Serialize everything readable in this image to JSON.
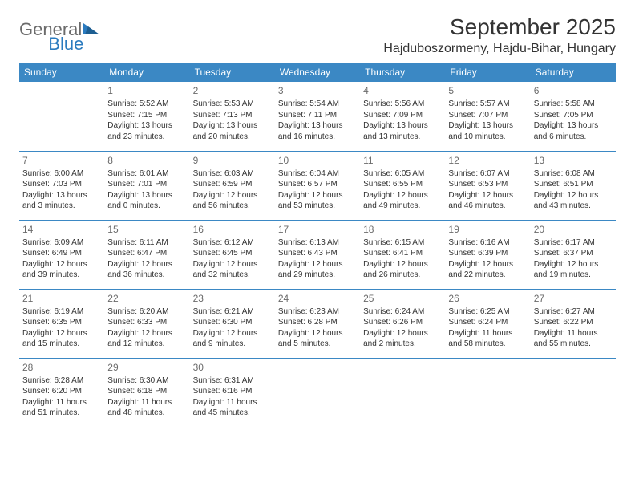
{
  "logo": {
    "word1": "General",
    "word2": "Blue"
  },
  "title": "September 2025",
  "location": "Hajduboszormeny, Hajdu-Bihar, Hungary",
  "colors": {
    "header_bg": "#3b88c4",
    "header_text": "#ffffff",
    "body_text": "#333333",
    "daynum_text": "#6b6b6b",
    "divider": "#3b88c4",
    "logo_gray": "#6b6b6b",
    "logo_blue": "#2b7bbf"
  },
  "weekdays": [
    "Sunday",
    "Monday",
    "Tuesday",
    "Wednesday",
    "Thursday",
    "Friday",
    "Saturday"
  ],
  "weeks": [
    [
      null,
      {
        "n": "1",
        "sunrise": "Sunrise: 5:52 AM",
        "sunset": "Sunset: 7:15 PM",
        "d1": "Daylight: 13 hours",
        "d2": "and 23 minutes."
      },
      {
        "n": "2",
        "sunrise": "Sunrise: 5:53 AM",
        "sunset": "Sunset: 7:13 PM",
        "d1": "Daylight: 13 hours",
        "d2": "and 20 minutes."
      },
      {
        "n": "3",
        "sunrise": "Sunrise: 5:54 AM",
        "sunset": "Sunset: 7:11 PM",
        "d1": "Daylight: 13 hours",
        "d2": "and 16 minutes."
      },
      {
        "n": "4",
        "sunrise": "Sunrise: 5:56 AM",
        "sunset": "Sunset: 7:09 PM",
        "d1": "Daylight: 13 hours",
        "d2": "and 13 minutes."
      },
      {
        "n": "5",
        "sunrise": "Sunrise: 5:57 AM",
        "sunset": "Sunset: 7:07 PM",
        "d1": "Daylight: 13 hours",
        "d2": "and 10 minutes."
      },
      {
        "n": "6",
        "sunrise": "Sunrise: 5:58 AM",
        "sunset": "Sunset: 7:05 PM",
        "d1": "Daylight: 13 hours",
        "d2": "and 6 minutes."
      }
    ],
    [
      {
        "n": "7",
        "sunrise": "Sunrise: 6:00 AM",
        "sunset": "Sunset: 7:03 PM",
        "d1": "Daylight: 13 hours",
        "d2": "and 3 minutes."
      },
      {
        "n": "8",
        "sunrise": "Sunrise: 6:01 AM",
        "sunset": "Sunset: 7:01 PM",
        "d1": "Daylight: 13 hours",
        "d2": "and 0 minutes."
      },
      {
        "n": "9",
        "sunrise": "Sunrise: 6:03 AM",
        "sunset": "Sunset: 6:59 PM",
        "d1": "Daylight: 12 hours",
        "d2": "and 56 minutes."
      },
      {
        "n": "10",
        "sunrise": "Sunrise: 6:04 AM",
        "sunset": "Sunset: 6:57 PM",
        "d1": "Daylight: 12 hours",
        "d2": "and 53 minutes."
      },
      {
        "n": "11",
        "sunrise": "Sunrise: 6:05 AM",
        "sunset": "Sunset: 6:55 PM",
        "d1": "Daylight: 12 hours",
        "d2": "and 49 minutes."
      },
      {
        "n": "12",
        "sunrise": "Sunrise: 6:07 AM",
        "sunset": "Sunset: 6:53 PM",
        "d1": "Daylight: 12 hours",
        "d2": "and 46 minutes."
      },
      {
        "n": "13",
        "sunrise": "Sunrise: 6:08 AM",
        "sunset": "Sunset: 6:51 PM",
        "d1": "Daylight: 12 hours",
        "d2": "and 43 minutes."
      }
    ],
    [
      {
        "n": "14",
        "sunrise": "Sunrise: 6:09 AM",
        "sunset": "Sunset: 6:49 PM",
        "d1": "Daylight: 12 hours",
        "d2": "and 39 minutes."
      },
      {
        "n": "15",
        "sunrise": "Sunrise: 6:11 AM",
        "sunset": "Sunset: 6:47 PM",
        "d1": "Daylight: 12 hours",
        "d2": "and 36 minutes."
      },
      {
        "n": "16",
        "sunrise": "Sunrise: 6:12 AM",
        "sunset": "Sunset: 6:45 PM",
        "d1": "Daylight: 12 hours",
        "d2": "and 32 minutes."
      },
      {
        "n": "17",
        "sunrise": "Sunrise: 6:13 AM",
        "sunset": "Sunset: 6:43 PM",
        "d1": "Daylight: 12 hours",
        "d2": "and 29 minutes."
      },
      {
        "n": "18",
        "sunrise": "Sunrise: 6:15 AM",
        "sunset": "Sunset: 6:41 PM",
        "d1": "Daylight: 12 hours",
        "d2": "and 26 minutes."
      },
      {
        "n": "19",
        "sunrise": "Sunrise: 6:16 AM",
        "sunset": "Sunset: 6:39 PM",
        "d1": "Daylight: 12 hours",
        "d2": "and 22 minutes."
      },
      {
        "n": "20",
        "sunrise": "Sunrise: 6:17 AM",
        "sunset": "Sunset: 6:37 PM",
        "d1": "Daylight: 12 hours",
        "d2": "and 19 minutes."
      }
    ],
    [
      {
        "n": "21",
        "sunrise": "Sunrise: 6:19 AM",
        "sunset": "Sunset: 6:35 PM",
        "d1": "Daylight: 12 hours",
        "d2": "and 15 minutes."
      },
      {
        "n": "22",
        "sunrise": "Sunrise: 6:20 AM",
        "sunset": "Sunset: 6:33 PM",
        "d1": "Daylight: 12 hours",
        "d2": "and 12 minutes."
      },
      {
        "n": "23",
        "sunrise": "Sunrise: 6:21 AM",
        "sunset": "Sunset: 6:30 PM",
        "d1": "Daylight: 12 hours",
        "d2": "and 9 minutes."
      },
      {
        "n": "24",
        "sunrise": "Sunrise: 6:23 AM",
        "sunset": "Sunset: 6:28 PM",
        "d1": "Daylight: 12 hours",
        "d2": "and 5 minutes."
      },
      {
        "n": "25",
        "sunrise": "Sunrise: 6:24 AM",
        "sunset": "Sunset: 6:26 PM",
        "d1": "Daylight: 12 hours",
        "d2": "and 2 minutes."
      },
      {
        "n": "26",
        "sunrise": "Sunrise: 6:25 AM",
        "sunset": "Sunset: 6:24 PM",
        "d1": "Daylight: 11 hours",
        "d2": "and 58 minutes."
      },
      {
        "n": "27",
        "sunrise": "Sunrise: 6:27 AM",
        "sunset": "Sunset: 6:22 PM",
        "d1": "Daylight: 11 hours",
        "d2": "and 55 minutes."
      }
    ],
    [
      {
        "n": "28",
        "sunrise": "Sunrise: 6:28 AM",
        "sunset": "Sunset: 6:20 PM",
        "d1": "Daylight: 11 hours",
        "d2": "and 51 minutes."
      },
      {
        "n": "29",
        "sunrise": "Sunrise: 6:30 AM",
        "sunset": "Sunset: 6:18 PM",
        "d1": "Daylight: 11 hours",
        "d2": "and 48 minutes."
      },
      {
        "n": "30",
        "sunrise": "Sunrise: 6:31 AM",
        "sunset": "Sunset: 6:16 PM",
        "d1": "Daylight: 11 hours",
        "d2": "and 45 minutes."
      },
      null,
      null,
      null,
      null
    ]
  ]
}
